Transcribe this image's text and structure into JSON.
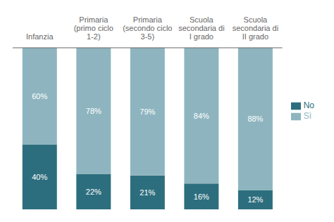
{
  "chart_data": {
    "type": "bar",
    "stacked": true,
    "categories": [
      "Infanzia",
      "Primaria\n(primo ciclo\n1-2)",
      "Primaria\n(secondo ciclo\n3-5)",
      "Scuola\nsecondaria di\nI grado",
      "Scuola\nsecondaria di\nII grado"
    ],
    "series": [
      {
        "name": "No",
        "color": "#2d6e7e",
        "values": [
          40,
          22,
          21,
          16,
          12
        ],
        "value_labels": [
          "40%",
          "22%",
          "21%",
          "16%",
          "12%"
        ]
      },
      {
        "name": "Sì",
        "color": "#8eb5bf",
        "values": [
          60,
          78,
          79,
          84,
          88
        ],
        "value_labels": [
          "60%",
          "78%",
          "79%",
          "84%",
          "88%"
        ]
      }
    ],
    "ylim": [
      0,
      100
    ],
    "data_labels": true,
    "tick_labels": "x",
    "legend": "right"
  }
}
